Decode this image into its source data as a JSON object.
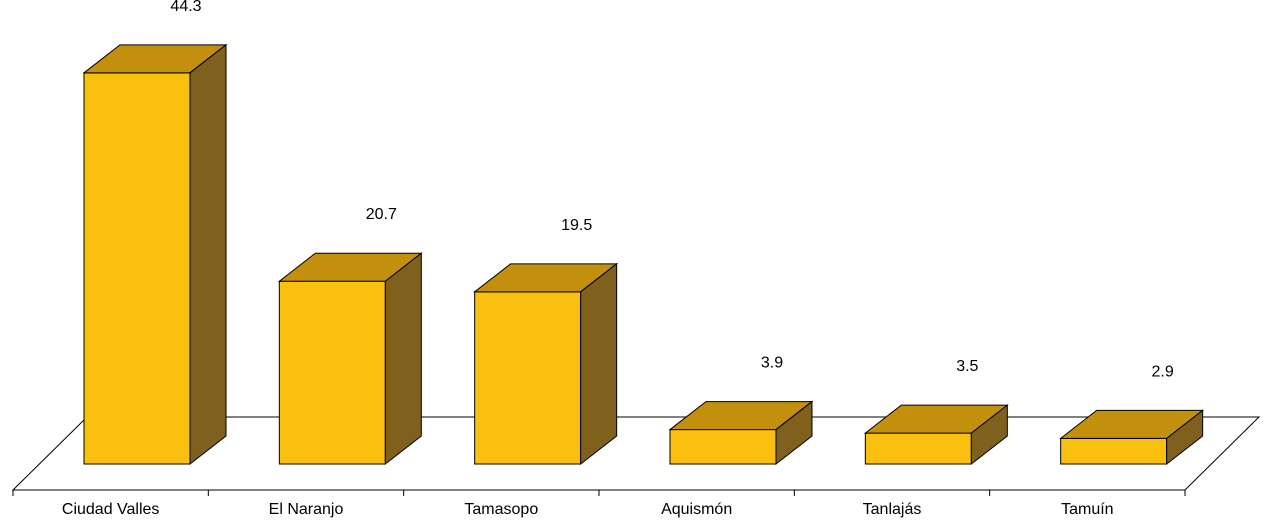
{
  "chart_data": {
    "type": "bar",
    "style": "3d-column",
    "categories": [
      "Ciudad Valles",
      "El Naranjo",
      "Tamasopo",
      "Aquismón",
      "Tanlajás",
      "Tamuín"
    ],
    "values": [
      44.3,
      20.7,
      19.5,
      3.9,
      3.5,
      2.9
    ],
    "data_labels": [
      "44.3",
      "20.7",
      "19.5",
      "3.9",
      "3.5",
      "2.9"
    ],
    "title": "",
    "xlabel": "",
    "ylabel": "",
    "grid": false,
    "legend": "none",
    "colors": {
      "front": "#F9C00F",
      "top": "#C2900C",
      "side": "#80601D",
      "outline": "#000000",
      "floor_fill": "#FFFFFF"
    }
  }
}
